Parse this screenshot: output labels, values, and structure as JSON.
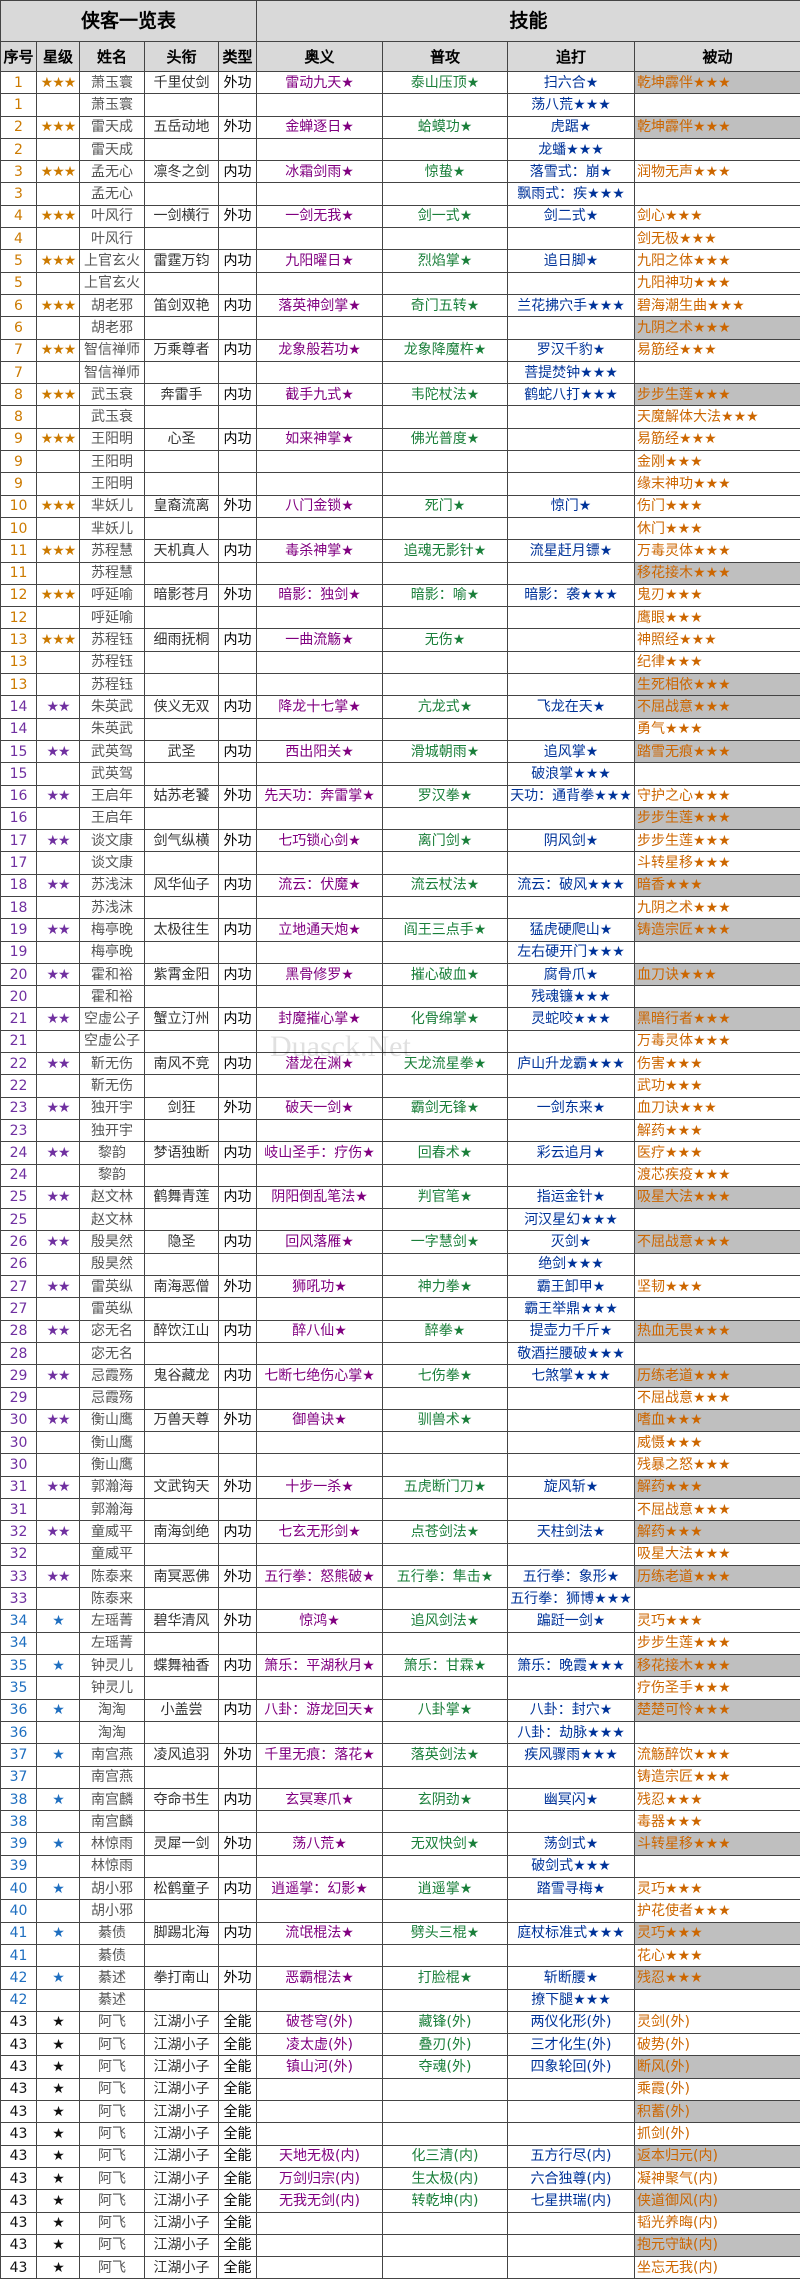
{
  "header": {
    "left_title": "侠客一览表",
    "right_title": "技能",
    "cols": [
      "序号",
      "星级",
      "姓名",
      "头衔",
      "类型",
      "奥义",
      "普攻",
      "追打",
      "被动"
    ]
  },
  "colors": {
    "gold": "#cc7a00",
    "purple": "#7030a0",
    "blue": "#1f6fc0",
    "black": "#111111"
  },
  "rows": [
    [
      "1",
      "★★★",
      "萧玉寰",
      "千里仗剑",
      "外功",
      "雷动九天★",
      "泰山压顶★",
      "扫六合★",
      "乾坤霹伴★★★",
      "gold"
    ],
    [
      "1",
      "",
      "萧玉寰",
      "",
      "",
      "",
      "",
      "荡八荒★★★",
      "",
      "gold"
    ],
    [
      "2",
      "★★★",
      "雷天成",
      "五岳动地",
      "外功",
      "金蝉逐日★",
      "蛤蟆功★",
      "虎踞★",
      "乾坤霹伴★★★",
      "gold"
    ],
    [
      "2",
      "",
      "雷天成",
      "",
      "",
      "",
      "",
      "龙蟠★★★",
      "",
      "gold"
    ],
    [
      "3",
      "★★★",
      "孟无心",
      "凛冬之剑",
      "内功",
      "冰霜剑雨★",
      "惊蛰★",
      "落雪式：崩★",
      "润物无声★★★",
      "gold"
    ],
    [
      "3",
      "",
      "孟无心",
      "",
      "",
      "",
      "",
      "飘雨式：疾★★★",
      "",
      "gold"
    ],
    [
      "4",
      "★★★",
      "叶风行",
      "一剑横行",
      "外功",
      "一剑无我★",
      "剑一式★",
      "剑二式★",
      "剑心★★★",
      "gold"
    ],
    [
      "4",
      "",
      "叶风行",
      "",
      "",
      "",
      "",
      "",
      "剑无极★★★",
      "gold"
    ],
    [
      "5",
      "★★★",
      "上官玄火",
      "雷霆万钧",
      "内功",
      "九阳曜日★",
      "烈焰掌★",
      "追日脚★",
      "九阳之体★★★",
      "gold"
    ],
    [
      "5",
      "",
      "上官玄火",
      "",
      "",
      "",
      "",
      "",
      "九阳神功★★★",
      "gold"
    ],
    [
      "6",
      "★★★",
      "胡老邪",
      "笛剑双艳",
      "内功",
      "落英神剑掌★",
      "奇门五转★",
      "兰花拂穴手★★★",
      "碧海潮生曲★★★",
      "gold"
    ],
    [
      "6",
      "",
      "胡老邪",
      "",
      "",
      "",
      "",
      "",
      "九阴之术★★★",
      "gold"
    ],
    [
      "7",
      "★★★",
      "智信禅师",
      "万乘尊者",
      "内功",
      "龙象般若功★",
      "龙象降魔杵★",
      "罗汉千豹★",
      "易筋经★★★",
      "gold"
    ],
    [
      "7",
      "",
      "智信禅师",
      "",
      "",
      "",
      "",
      "菩提焚钟★★★",
      "",
      "gold"
    ],
    [
      "8",
      "★★★",
      "武玉衰",
      "奔雷手",
      "内功",
      "截手九式★",
      "韦陀杖法★",
      "鹤蛇八打★★★",
      "步步生莲★★★",
      "gold"
    ],
    [
      "8",
      "",
      "武玉衰",
      "",
      "",
      "",
      "",
      "",
      "天魔解体大法★★★",
      "gold"
    ],
    [
      "9",
      "★★★",
      "王阳明",
      "心圣",
      "内功",
      "如来神掌★",
      "佛光普度★",
      "",
      "易筋经★★★",
      "gold"
    ],
    [
      "9",
      "",
      "王阳明",
      "",
      "",
      "",
      "",
      "",
      "金刚★★★",
      "gold"
    ],
    [
      "9",
      "",
      "王阳明",
      "",
      "",
      "",
      "",
      "",
      "缘末神功★★★",
      "gold"
    ],
    [
      "10",
      "★★★",
      "芈妖儿",
      "皇裔流离",
      "外功",
      "八门金锁★",
      "死门★",
      "惊门★",
      "伤门★★★",
      "gold"
    ],
    [
      "10",
      "",
      "芈妖儿",
      "",
      "",
      "",
      "",
      "",
      "休门★★★",
      "gold"
    ],
    [
      "11",
      "★★★",
      "苏程慧",
      "天机真人",
      "内功",
      "毒杀神掌★",
      "追魂无影针★",
      "流星赶月镖★",
      "万毒灵体★★★",
      "gold"
    ],
    [
      "11",
      "",
      "苏程慧",
      "",
      "",
      "",
      "",
      "",
      "移花接木★★★",
      "gold"
    ],
    [
      "12",
      "★★★",
      "呼延喻",
      "暗影苍月",
      "外功",
      "暗影：独剑★",
      "暗影：喻★",
      "暗影：袭★★★",
      "鬼刃★★★",
      "gold"
    ],
    [
      "12",
      "",
      "呼延喻",
      "",
      "",
      "",
      "",
      "",
      "鹰眼★★★",
      "gold"
    ],
    [
      "13",
      "★★★",
      "苏程钰",
      "细雨抚桐",
      "内功",
      "一曲流觞★",
      "无伤★",
      "",
      "神照经★★★",
      "gold"
    ],
    [
      "13",
      "",
      "苏程钰",
      "",
      "",
      "",
      "",
      "",
      "纪律★★★",
      "gold"
    ],
    [
      "13",
      "",
      "苏程钰",
      "",
      "",
      "",
      "",
      "",
      "生死相依★★★",
      "gold"
    ],
    [
      "14",
      "★★",
      "朱英武",
      "侠义无双",
      "内功",
      "降龙十七掌★",
      "亢龙式★",
      "飞龙在天★",
      "不屈战意★★★",
      "purple"
    ],
    [
      "14",
      "",
      "朱英武",
      "",
      "",
      "",
      "",
      "",
      "勇气★★★",
      "purple"
    ],
    [
      "15",
      "★★",
      "武英驾",
      "武圣",
      "内功",
      "西出阳关★",
      "滑城朝雨★",
      "追风掌★",
      "踏雪无痕★★★",
      "purple"
    ],
    [
      "15",
      "",
      "武英驾",
      "",
      "",
      "",
      "",
      "破浪掌★★★",
      "",
      "purple"
    ],
    [
      "16",
      "★★",
      "王启年",
      "姑苏老饕",
      "外功",
      "先天功：奔雷掌★",
      "罗汉拳★",
      "天功：通背拳★★★",
      "守护之心★★★",
      "purple"
    ],
    [
      "16",
      "",
      "王启年",
      "",
      "",
      "",
      "",
      "",
      "步步生莲★★★",
      "purple"
    ],
    [
      "17",
      "★★",
      "谈文康",
      "剑气纵横",
      "外功",
      "七巧锁心剑★",
      "离门剑★",
      "阴风剑★",
      "步步生莲★★★",
      "purple"
    ],
    [
      "17",
      "",
      "谈文康",
      "",
      "",
      "",
      "",
      "",
      "斗转星移★★★",
      "purple"
    ],
    [
      "18",
      "★★",
      "苏浅沫",
      "风华仙子",
      "内功",
      "流云：伏魔★",
      "流云杖法★",
      "流云：破风★★★",
      "暗香★★★",
      "purple"
    ],
    [
      "18",
      "",
      "苏浅沫",
      "",
      "",
      "",
      "",
      "",
      "九阴之术★★★",
      "purple"
    ],
    [
      "19",
      "★★",
      "梅亭晚",
      "太极往生",
      "内功",
      "立地通天炮★",
      "阎王三点手★",
      "猛虎硬爬山★",
      "铸造宗匠★★★",
      "purple"
    ],
    [
      "19",
      "",
      "梅亭晚",
      "",
      "",
      "",
      "",
      "左右硬开门★★★",
      "",
      "purple"
    ],
    [
      "20",
      "★★",
      "霍和裕",
      "紫霄金阳",
      "内功",
      "黑骨修罗★",
      "摧心破血★",
      "腐骨爪★",
      "血刀诀★★★",
      "purple"
    ],
    [
      "20",
      "",
      "霍和裕",
      "",
      "",
      "",
      "",
      "残魂镰★★★",
      "",
      "purple"
    ],
    [
      "21",
      "★★",
      "空虚公子",
      "蟹立汀州",
      "内功",
      "封魔摧心掌★",
      "化骨绵掌★",
      "灵蛇咬★★★",
      "黑暗行者★★★",
      "purple"
    ],
    [
      "21",
      "",
      "空虚公子",
      "",
      "",
      "",
      "",
      "",
      "万毒灵体★★★",
      "purple"
    ],
    [
      "22",
      "★★",
      "靳无伤",
      "南风不竞",
      "内功",
      "潜龙在渊★",
      "天龙流星拳★",
      "庐山升龙霸★★★",
      "伤害★★★",
      "purple"
    ],
    [
      "22",
      "",
      "靳无伤",
      "",
      "",
      "",
      "",
      "",
      "武功★★★",
      "purple"
    ],
    [
      "23",
      "★★",
      "独开宇",
      "剑狂",
      "外功",
      "破天一剑★",
      "霸剑无锋★",
      "一剑东来★",
      "血刀诀★★★",
      "purple"
    ],
    [
      "23",
      "",
      "独开宇",
      "",
      "",
      "",
      "",
      "",
      "解药★★★",
      "purple"
    ],
    [
      "24",
      "★★",
      "黎韵",
      "梦语独断",
      "内功",
      "岐山圣手：疗伤★",
      "回春术★",
      "彩云追月★",
      "医疗★★★",
      "purple"
    ],
    [
      "24",
      "",
      "黎韵",
      "",
      "",
      "",
      "",
      "",
      "渡芯疾疫★★★",
      "purple"
    ],
    [
      "25",
      "★★",
      "赵文林",
      "鹤舞青莲",
      "内功",
      "阴阳倒乱笔法★",
      "判官笔★",
      "指运金针★",
      "吸星大法★★★",
      "purple"
    ],
    [
      "25",
      "",
      "赵文林",
      "",
      "",
      "",
      "",
      "河汉星幻★★★",
      "",
      "purple"
    ],
    [
      "26",
      "★★",
      "殷昊然",
      "隐圣",
      "内功",
      "回风落雁★",
      "一字慧剑★",
      "灭剑★",
      "不屈战意★★★",
      "purple"
    ],
    [
      "26",
      "",
      "殷昊然",
      "",
      "",
      "",
      "",
      "绝剑★★★",
      "",
      "purple"
    ],
    [
      "27",
      "★★",
      "雷英纵",
      "南海恶僧",
      "外功",
      "狮吼功★",
      "神力拳★",
      "霸王卸甲★",
      "坚韧★★★",
      "purple"
    ],
    [
      "27",
      "",
      "雷英纵",
      "",
      "",
      "",
      "",
      "霸王举鼎★★★",
      "",
      "purple"
    ],
    [
      "28",
      "★★",
      "宓无名",
      "醉饮江山",
      "内功",
      "醉八仙★",
      "醉拳★",
      "提壶力千斤★",
      "热血无畏★★★",
      "purple"
    ],
    [
      "28",
      "",
      "宓无名",
      "",
      "",
      "",
      "",
      "敬酒拦腰破★★★",
      "",
      "purple"
    ],
    [
      "29",
      "★★",
      "忌霞殇",
      "鬼谷藏龙",
      "内功",
      "七断七绝伤心掌★",
      "七伤拳★",
      "七煞掌★★★",
      "历练老道★★★",
      "purple"
    ],
    [
      "29",
      "",
      "忌霞殇",
      "",
      "",
      "",
      "",
      "",
      "不屈战意★★★",
      "purple"
    ],
    [
      "30",
      "★★",
      "衡山鹰",
      "万兽天尊",
      "外功",
      "御兽诀★",
      "驯兽术★",
      "",
      "嗜血★★★",
      "purple"
    ],
    [
      "30",
      "",
      "衡山鹰",
      "",
      "",
      "",
      "",
      "",
      "威慑★★★",
      "purple"
    ],
    [
      "30",
      "",
      "衡山鹰",
      "",
      "",
      "",
      "",
      "",
      "残暴之怒★★★",
      "purple"
    ],
    [
      "31",
      "★★",
      "郭瀚海",
      "文武钩天",
      "外功",
      "十步一杀★",
      "五虎断门刀★",
      "旋风斩★",
      "解药★★★",
      "purple"
    ],
    [
      "31",
      "",
      "郭瀚海",
      "",
      "",
      "",
      "",
      "",
      "不屈战意★★★",
      "purple"
    ],
    [
      "32",
      "★★",
      "童威平",
      "南海剑绝",
      "内功",
      "七玄无形剑★",
      "点苍剑法★",
      "天柱剑法★",
      "解药★★★",
      "purple"
    ],
    [
      "32",
      "",
      "童威平",
      "",
      "",
      "",
      "",
      "",
      "吸星大法★★★",
      "purple"
    ],
    [
      "33",
      "★★",
      "陈泰来",
      "南冥恶佛",
      "外功",
      "五行拳：怒熊破★",
      "五行拳：隼击★",
      "五行拳：象形★",
      "历练老道★★★",
      "purple"
    ],
    [
      "33",
      "",
      "陈泰来",
      "",
      "",
      "",
      "",
      "五行拳：狮博★★★",
      "",
      "purple"
    ],
    [
      "34",
      "★",
      "左瑶菁",
      "碧华清风",
      "外功",
      "惊鸿★",
      "追风剑法★",
      "蹁跹一剑★",
      "灵巧★★★",
      "blue"
    ],
    [
      "34",
      "",
      "左瑶菁",
      "",
      "",
      "",
      "",
      "",
      "步步生莲★★★",
      "blue"
    ],
    [
      "35",
      "★",
      "钟灵儿",
      "蝶舞袖香",
      "内功",
      "箫乐：平湖秋月★",
      "箫乐：甘霖★",
      "箫乐：晚霞★★★",
      "移花接木★★★",
      "blue"
    ],
    [
      "35",
      "",
      "钟灵儿",
      "",
      "",
      "",
      "",
      "",
      "疗伤圣手★★★",
      "blue"
    ],
    [
      "36",
      "★",
      "淘淘",
      "小盖尝",
      "内功",
      "八卦：游龙回天★",
      "八卦掌★",
      "八卦：封穴★",
      "楚楚可怜★★★",
      "blue"
    ],
    [
      "36",
      "",
      "淘淘",
      "",
      "",
      "",
      "",
      "八卦：劫脉★★★",
      "",
      "blue"
    ],
    [
      "37",
      "★",
      "南宫燕",
      "凌风追羽",
      "外功",
      "千里无痕：落花★",
      "落英剑法★",
      "疾风骤雨★★★",
      "流觞醉饮★★★",
      "blue"
    ],
    [
      "37",
      "",
      "南宫燕",
      "",
      "",
      "",
      "",
      "",
      "铸造宗匠★★★",
      "blue"
    ],
    [
      "38",
      "★",
      "南宫麟",
      "夺命书生",
      "内功",
      "玄冥寒爪★",
      "玄阴劲★",
      "幽冥闪★",
      "残忍★★★",
      "blue"
    ],
    [
      "38",
      "",
      "南宫麟",
      "",
      "",
      "",
      "",
      "",
      "毒器★★★",
      "blue"
    ],
    [
      "39",
      "★",
      "林惊雨",
      "灵犀一剑",
      "外功",
      "荡八荒★",
      "无双快剑★",
      "荡剑式★",
      "斗转星移★★★",
      "blue"
    ],
    [
      "39",
      "",
      "林惊雨",
      "",
      "",
      "",
      "",
      "破剑式★★★",
      "",
      "blue"
    ],
    [
      "40",
      "★",
      "胡小邪",
      "松鹤童子",
      "内功",
      "逍遥掌：幻影★",
      "逍遥掌★",
      "踏雪寻梅★",
      "灵巧★★★",
      "blue"
    ],
    [
      "40",
      "",
      "胡小邪",
      "",
      "",
      "",
      "",
      "",
      "护花使者★★★",
      "blue"
    ],
    [
      "41",
      "★",
      "綦债",
      "脚踢北海",
      "内功",
      "流氓棍法★",
      "劈头三棍★",
      "庭杖标准式★★★",
      "灵巧★★★",
      "blue"
    ],
    [
      "41",
      "",
      "綦债",
      "",
      "",
      "",
      "",
      "",
      "花心★★★",
      "blue"
    ],
    [
      "42",
      "★",
      "綦述",
      "拳打南山",
      "外功",
      "恶霸棍法★",
      "打脸棍★",
      "斩断腰★",
      "残忍★★★",
      "blue"
    ],
    [
      "42",
      "",
      "綦述",
      "",
      "",
      "",
      "",
      "撩下腿★★★",
      "",
      "blue"
    ],
    [
      "43",
      "★",
      "阿飞",
      "江湖小子",
      "全能",
      "破苍穹(外)",
      "藏锋(外)",
      "两仪化形(外)",
      "灵剑(外)",
      "black"
    ],
    [
      "43",
      "★",
      "阿飞",
      "江湖小子",
      "全能",
      "凌太虚(外)",
      "叠刃(外)",
      "三才化生(外)",
      "破势(外)",
      "black"
    ],
    [
      "43",
      "★",
      "阿飞",
      "江湖小子",
      "全能",
      "镇山河(外)",
      "夺魂(外)",
      "四象轮回(外)",
      "断风(外)",
      "black"
    ],
    [
      "43",
      "★",
      "阿飞",
      "江湖小子",
      "全能",
      "",
      "",
      "",
      "乘霞(外)",
      "black"
    ],
    [
      "43",
      "★",
      "阿飞",
      "江湖小子",
      "全能",
      "",
      "",
      "",
      "积蓄(外)",
      "black"
    ],
    [
      "43",
      "★",
      "阿飞",
      "江湖小子",
      "全能",
      "",
      "",
      "",
      "抓剑(外)",
      "black"
    ],
    [
      "43",
      "★",
      "阿飞",
      "江湖小子",
      "全能",
      "天地无极(内)",
      "化三清(内)",
      "五方行尽(内)",
      "返本归元(内)",
      "black"
    ],
    [
      "43",
      "★",
      "阿飞",
      "江湖小子",
      "全能",
      "万剑归宗(内)",
      "生太极(内)",
      "六合独尊(内)",
      "凝神聚气(内)",
      "black"
    ],
    [
      "43",
      "★",
      "阿飞",
      "江湖小子",
      "全能",
      "无我无剑(内)",
      "转乾坤(内)",
      "七星拱瑞(内)",
      "侠道御风(内)",
      "black"
    ],
    [
      "43",
      "★",
      "阿飞",
      "江湖小子",
      "全能",
      "",
      "",
      "",
      "韬光养晦(内)",
      "black"
    ],
    [
      "43",
      "★",
      "阿飞",
      "江湖小子",
      "全能",
      "",
      "",
      "",
      "抱元守缺(内)",
      "black"
    ],
    [
      "43",
      "★",
      "阿飞",
      "江湖小子",
      "全能",
      "",
      "",
      "",
      "坐忘无我(内)",
      "black"
    ]
  ],
  "highlight_rows": [
    0,
    2,
    11,
    14,
    22,
    27,
    28,
    30,
    33,
    36,
    38,
    40,
    42,
    50,
    52,
    56,
    58,
    60,
    63,
    65,
    67,
    71,
    73,
    79,
    83,
    85,
    89,
    91,
    93,
    95,
    97,
    99,
    103,
    104,
    109,
    110,
    111
  ],
  "watermark": "Duasck.Net"
}
